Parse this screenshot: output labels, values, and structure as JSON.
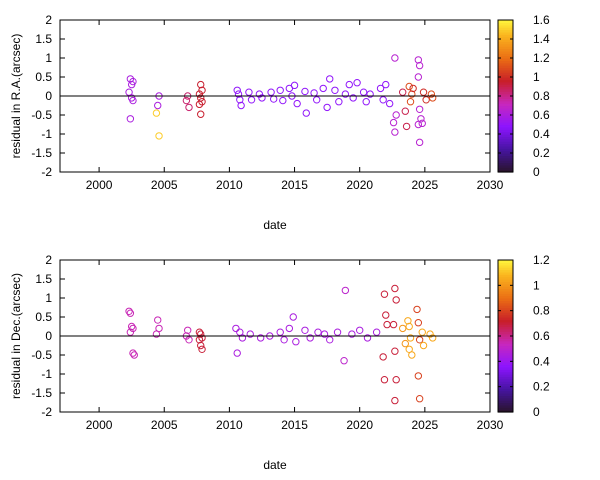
{
  "chart_data": [
    {
      "type": "scatter",
      "title": "",
      "xlabel": "date",
      "ylabel": "residual in R.A.(arcsec)",
      "xlim": [
        1997,
        2030
      ],
      "ylim": [
        -2,
        2
      ],
      "xticks": [
        "2000",
        "2005",
        "2010",
        "2015",
        "2020",
        "2025",
        "2030"
      ],
      "yticks": [
        "2",
        "1.5",
        "1",
        "0.5",
        "0",
        "-0.5",
        "-1",
        "-1.5",
        "-2"
      ],
      "zero_line": true,
      "colorbar": {
        "range": [
          0,
          1.6
        ],
        "ticks": [
          "1.6",
          "1.4",
          "1.2",
          "1",
          "0.8",
          "0.6",
          "0.4",
          "0.2",
          "0"
        ]
      },
      "points": [
        {
          "x": 2002.4,
          "y": 0.45,
          "c": 0.6
        },
        {
          "x": 2002.5,
          "y": 0.3,
          "c": 0.6
        },
        {
          "x": 2002.6,
          "y": 0.38,
          "c": 0.6
        },
        {
          "x": 2002.3,
          "y": 0.1,
          "c": 0.6
        },
        {
          "x": 2002.5,
          "y": -0.05,
          "c": 0.6
        },
        {
          "x": 2002.4,
          "y": -0.6,
          "c": 0.6
        },
        {
          "x": 2002.6,
          "y": -0.12,
          "c": 0.6
        },
        {
          "x": 2004.6,
          "y": 0.0,
          "c": 0.6
        },
        {
          "x": 2004.5,
          "y": -0.25,
          "c": 0.6
        },
        {
          "x": 2004.4,
          "y": -0.45,
          "c": 1.5
        },
        {
          "x": 2004.6,
          "y": -1.05,
          "c": 1.5
        },
        {
          "x": 2006.8,
          "y": 0.0,
          "c": 0.85
        },
        {
          "x": 2006.7,
          "y": -0.12,
          "c": 0.85
        },
        {
          "x": 2006.9,
          "y": -0.3,
          "c": 0.85
        },
        {
          "x": 2007.8,
          "y": 0.3,
          "c": 0.95
        },
        {
          "x": 2007.9,
          "y": 0.15,
          "c": 0.95
        },
        {
          "x": 2007.7,
          "y": 0.05,
          "c": 0.95
        },
        {
          "x": 2007.8,
          "y": -0.05,
          "c": 0.95
        },
        {
          "x": 2007.9,
          "y": -0.15,
          "c": 0.95
        },
        {
          "x": 2007.7,
          "y": -0.22,
          "c": 0.95
        },
        {
          "x": 2007.8,
          "y": -0.48,
          "c": 0.95
        },
        {
          "x": 2010.6,
          "y": 0.15,
          "c": 0.5
        },
        {
          "x": 2010.7,
          "y": 0.05,
          "c": 0.5
        },
        {
          "x": 2010.8,
          "y": -0.1,
          "c": 0.5
        },
        {
          "x": 2010.9,
          "y": -0.25,
          "c": 0.5
        },
        {
          "x": 2011.5,
          "y": 0.1,
          "c": 0.5
        },
        {
          "x": 2011.7,
          "y": -0.1,
          "c": 0.5
        },
        {
          "x": 2012.3,
          "y": 0.05,
          "c": 0.5
        },
        {
          "x": 2012.5,
          "y": -0.05,
          "c": 0.5
        },
        {
          "x": 2013.2,
          "y": 0.1,
          "c": 0.5
        },
        {
          "x": 2013.4,
          "y": -0.08,
          "c": 0.5
        },
        {
          "x": 2013.9,
          "y": 0.15,
          "c": 0.5
        },
        {
          "x": 2014.1,
          "y": -0.12,
          "c": 0.5
        },
        {
          "x": 2014.6,
          "y": 0.2,
          "c": 0.5
        },
        {
          "x": 2014.8,
          "y": 0.0,
          "c": 0.5
        },
        {
          "x": 2015.0,
          "y": 0.28,
          "c": 0.5
        },
        {
          "x": 2015.2,
          "y": -0.2,
          "c": 0.5
        },
        {
          "x": 2015.8,
          "y": 0.12,
          "c": 0.5
        },
        {
          "x": 2015.9,
          "y": -0.45,
          "c": 0.5
        },
        {
          "x": 2016.5,
          "y": 0.08,
          "c": 0.5
        },
        {
          "x": 2016.7,
          "y": -0.1,
          "c": 0.5
        },
        {
          "x": 2017.2,
          "y": 0.2,
          "c": 0.5
        },
        {
          "x": 2017.5,
          "y": -0.3,
          "c": 0.5
        },
        {
          "x": 2017.7,
          "y": 0.45,
          "c": 0.5
        },
        {
          "x": 2018.1,
          "y": 0.15,
          "c": 0.5
        },
        {
          "x": 2018.4,
          "y": -0.15,
          "c": 0.5
        },
        {
          "x": 2018.9,
          "y": 0.05,
          "c": 0.5
        },
        {
          "x": 2019.2,
          "y": 0.3,
          "c": 0.5
        },
        {
          "x": 2019.5,
          "y": -0.05,
          "c": 0.5
        },
        {
          "x": 2019.8,
          "y": 0.35,
          "c": 0.5
        },
        {
          "x": 2020.3,
          "y": 0.1,
          "c": 0.5
        },
        {
          "x": 2020.5,
          "y": -0.15,
          "c": 0.5
        },
        {
          "x": 2020.8,
          "y": 0.05,
          "c": 0.5
        },
        {
          "x": 2021.6,
          "y": 0.2,
          "c": 0.5
        },
        {
          "x": 2021.8,
          "y": -0.1,
          "c": 0.5
        },
        {
          "x": 2022.0,
          "y": 0.3,
          "c": 0.5
        },
        {
          "x": 2022.3,
          "y": -0.2,
          "c": 0.5
        },
        {
          "x": 2022.6,
          "y": -0.7,
          "c": 0.65
        },
        {
          "x": 2022.7,
          "y": -0.95,
          "c": 0.65
        },
        {
          "x": 2022.8,
          "y": -0.5,
          "c": 0.65
        },
        {
          "x": 2022.7,
          "y": 1.0,
          "c": 0.65
        },
        {
          "x": 2023.3,
          "y": 0.1,
          "c": 0.9
        },
        {
          "x": 2023.5,
          "y": -0.4,
          "c": 0.9
        },
        {
          "x": 2023.6,
          "y": -0.8,
          "c": 0.9
        },
        {
          "x": 2023.8,
          "y": 0.25,
          "c": 1.1
        },
        {
          "x": 2023.9,
          "y": -0.15,
          "c": 1.1
        },
        {
          "x": 2024.0,
          "y": 0.05,
          "c": 1.1
        },
        {
          "x": 2024.1,
          "y": 0.2,
          "c": 1.0
        },
        {
          "x": 2024.5,
          "y": 0.95,
          "c": 0.65
        },
        {
          "x": 2024.6,
          "y": 0.8,
          "c": 0.65
        },
        {
          "x": 2024.5,
          "y": 0.5,
          "c": 0.65
        },
        {
          "x": 2024.6,
          "y": -0.35,
          "c": 0.65
        },
        {
          "x": 2024.7,
          "y": -0.6,
          "c": 0.65
        },
        {
          "x": 2024.8,
          "y": -0.72,
          "c": 0.65
        },
        {
          "x": 2024.5,
          "y": -0.75,
          "c": 0.65
        },
        {
          "x": 2024.6,
          "y": -1.22,
          "c": 0.65
        },
        {
          "x": 2024.9,
          "y": 0.1,
          "c": 1.0
        },
        {
          "x": 2025.1,
          "y": -0.1,
          "c": 1.0
        },
        {
          "x": 2025.5,
          "y": 0.05,
          "c": 1.1
        },
        {
          "x": 2025.6,
          "y": -0.05,
          "c": 1.1
        }
      ]
    },
    {
      "type": "scatter",
      "title": "",
      "xlabel": "date",
      "ylabel": "residual in Dec.(arcsec)",
      "xlim": [
        1997,
        2030
      ],
      "ylim": [
        -2,
        2
      ],
      "xticks": [
        "2000",
        "2005",
        "2010",
        "2015",
        "2020",
        "2025",
        "2030"
      ],
      "yticks": [
        "2",
        "1.5",
        "1",
        "0.5",
        "0",
        "-0.5",
        "-1",
        "-1.5",
        "-2"
      ],
      "zero_line": true,
      "colorbar": {
        "range": [
          0,
          1.2
        ],
        "ticks": [
          "1.2",
          "1",
          "0.8",
          "0.6",
          "0.4",
          "0.2",
          "0"
        ]
      },
      "points": [
        {
          "x": 2002.3,
          "y": 0.65,
          "c": 0.55
        },
        {
          "x": 2002.4,
          "y": 0.6,
          "c": 0.55
        },
        {
          "x": 2002.5,
          "y": 0.25,
          "c": 0.55
        },
        {
          "x": 2002.6,
          "y": 0.2,
          "c": 0.55
        },
        {
          "x": 2002.4,
          "y": 0.1,
          "c": 0.55
        },
        {
          "x": 2002.6,
          "y": -0.45,
          "c": 0.55
        },
        {
          "x": 2002.7,
          "y": -0.5,
          "c": 0.55
        },
        {
          "x": 2004.5,
          "y": 0.42,
          "c": 0.55
        },
        {
          "x": 2004.6,
          "y": 0.2,
          "c": 0.55
        },
        {
          "x": 2004.4,
          "y": 0.05,
          "c": 0.55
        },
        {
          "x": 2006.8,
          "y": 0.15,
          "c": 0.55
        },
        {
          "x": 2006.7,
          "y": 0.0,
          "c": 0.55
        },
        {
          "x": 2006.9,
          "y": -0.1,
          "c": 0.55
        },
        {
          "x": 2007.7,
          "y": 0.1,
          "c": 0.7
        },
        {
          "x": 2007.8,
          "y": 0.05,
          "c": 0.7
        },
        {
          "x": 2007.9,
          "y": -0.05,
          "c": 0.7
        },
        {
          "x": 2007.7,
          "y": -0.1,
          "c": 0.7
        },
        {
          "x": 2007.8,
          "y": -0.25,
          "c": 0.7
        },
        {
          "x": 2007.9,
          "y": -0.35,
          "c": 0.7
        },
        {
          "x": 2010.5,
          "y": 0.2,
          "c": 0.45
        },
        {
          "x": 2010.6,
          "y": -0.45,
          "c": 0.45
        },
        {
          "x": 2010.8,
          "y": 0.1,
          "c": 0.45
        },
        {
          "x": 2011.0,
          "y": -0.05,
          "c": 0.45
        },
        {
          "x": 2011.6,
          "y": 0.05,
          "c": 0.45
        },
        {
          "x": 2012.4,
          "y": -0.05,
          "c": 0.45
        },
        {
          "x": 2013.1,
          "y": 0.0,
          "c": 0.45
        },
        {
          "x": 2013.9,
          "y": 0.1,
          "c": 0.45
        },
        {
          "x": 2014.2,
          "y": -0.1,
          "c": 0.45
        },
        {
          "x": 2014.6,
          "y": 0.2,
          "c": 0.45
        },
        {
          "x": 2014.9,
          "y": 0.5,
          "c": 0.45
        },
        {
          "x": 2015.1,
          "y": -0.15,
          "c": 0.45
        },
        {
          "x": 2015.8,
          "y": 0.15,
          "c": 0.45
        },
        {
          "x": 2016.2,
          "y": -0.05,
          "c": 0.45
        },
        {
          "x": 2016.8,
          "y": 0.1,
          "c": 0.45
        },
        {
          "x": 2017.3,
          "y": 0.05,
          "c": 0.45
        },
        {
          "x": 2017.7,
          "y": -0.1,
          "c": 0.45
        },
        {
          "x": 2018.3,
          "y": 0.1,
          "c": 0.45
        },
        {
          "x": 2018.9,
          "y": 1.2,
          "c": 0.5
        },
        {
          "x": 2018.8,
          "y": -0.65,
          "c": 0.5
        },
        {
          "x": 2019.4,
          "y": 0.05,
          "c": 0.45
        },
        {
          "x": 2020.0,
          "y": 0.15,
          "c": 0.45
        },
        {
          "x": 2020.6,
          "y": -0.05,
          "c": 0.45
        },
        {
          "x": 2021.3,
          "y": 0.1,
          "c": 0.45
        },
        {
          "x": 2021.9,
          "y": 1.1,
          "c": 0.7
        },
        {
          "x": 2022.0,
          "y": 0.55,
          "c": 0.7
        },
        {
          "x": 2022.1,
          "y": 0.3,
          "c": 0.7
        },
        {
          "x": 2021.8,
          "y": -0.55,
          "c": 0.7
        },
        {
          "x": 2021.9,
          "y": -1.15,
          "c": 0.7
        },
        {
          "x": 2022.7,
          "y": 1.25,
          "c": 0.7
        },
        {
          "x": 2022.8,
          "y": 0.95,
          "c": 0.7
        },
        {
          "x": 2022.6,
          "y": 0.3,
          "c": 0.7
        },
        {
          "x": 2022.7,
          "y": -0.4,
          "c": 0.7
        },
        {
          "x": 2022.8,
          "y": -1.15,
          "c": 0.7
        },
        {
          "x": 2022.7,
          "y": -1.7,
          "c": 0.7
        },
        {
          "x": 2023.3,
          "y": 0.2,
          "c": 1.0
        },
        {
          "x": 2023.5,
          "y": -0.2,
          "c": 1.0
        },
        {
          "x": 2023.7,
          "y": 0.4,
          "c": 1.05
        },
        {
          "x": 2023.8,
          "y": 0.25,
          "c": 1.05
        },
        {
          "x": 2023.9,
          "y": -0.05,
          "c": 1.05
        },
        {
          "x": 2023.8,
          "y": -0.35,
          "c": 1.05
        },
        {
          "x": 2024.0,
          "y": -0.5,
          "c": 1.05
        },
        {
          "x": 2024.4,
          "y": 0.7,
          "c": 0.8
        },
        {
          "x": 2024.5,
          "y": 0.35,
          "c": 0.8
        },
        {
          "x": 2024.6,
          "y": -0.1,
          "c": 0.8
        },
        {
          "x": 2024.5,
          "y": -1.05,
          "c": 0.8
        },
        {
          "x": 2024.6,
          "y": -1.65,
          "c": 0.8
        },
        {
          "x": 2024.8,
          "y": 0.1,
          "c": 1.05
        },
        {
          "x": 2024.9,
          "y": -0.25,
          "c": 1.05
        },
        {
          "x": 2025.4,
          "y": 0.05,
          "c": 1.05
        },
        {
          "x": 2025.6,
          "y": -0.05,
          "c": 1.05
        }
      ]
    }
  ]
}
